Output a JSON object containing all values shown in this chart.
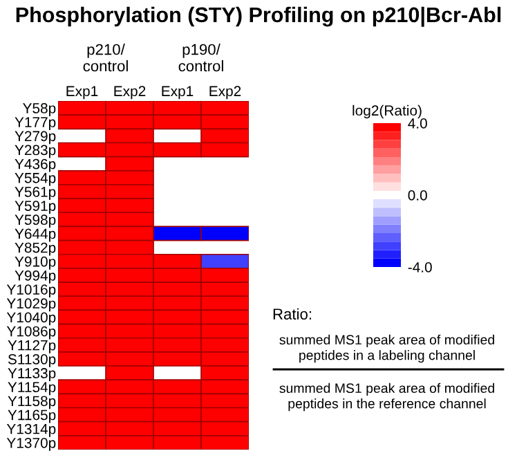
{
  "chart_data": {
    "type": "heatmap",
    "title": "Phosphorylation (STY) Profiling on p210|Bcr-Abl",
    "categories": [
      "Exp1",
      "Exp2",
      "Exp1",
      "Exp2"
    ],
    "y_categories": [
      "Y58p",
      "Y177p",
      "Y279p",
      "Y283p",
      "Y436p",
      "Y554p",
      "Y561p",
      "Y591p",
      "Y598p",
      "Y644p",
      "Y852p",
      "Y910p",
      "Y994p",
      "Y1016p",
      "Y1029p",
      "Y1040p",
      "Y1086p",
      "Y1127p",
      "S1130p",
      "Y1133p",
      "Y1154p",
      "Y1158p",
      "Y1165p",
      "Y1314p",
      "Y1370p"
    ],
    "cells": [
      [
        4,
        4,
        4,
        4
      ],
      [
        4,
        4,
        4,
        4
      ],
      [
        null,
        4,
        null,
        4
      ],
      [
        4,
        4,
        4,
        4
      ],
      [
        null,
        4,
        null,
        null
      ],
      [
        4,
        4,
        null,
        null
      ],
      [
        4,
        4,
        null,
        null
      ],
      [
        4,
        4,
        null,
        null
      ],
      [
        4,
        4,
        null,
        null
      ],
      [
        4,
        4,
        -4,
        -4
      ],
      [
        4,
        4,
        null,
        null
      ],
      [
        4,
        4,
        4,
        -3
      ],
      [
        4,
        4,
        4,
        4
      ],
      [
        4,
        4,
        4,
        4
      ],
      [
        4,
        4,
        4,
        4
      ],
      [
        4,
        4,
        4,
        4
      ],
      [
        4,
        4,
        4,
        4
      ],
      [
        4,
        4,
        4,
        4
      ],
      [
        4,
        4,
        4,
        4
      ],
      [
        null,
        4,
        null,
        4
      ],
      [
        4,
        4,
        4,
        4
      ],
      [
        4,
        4,
        4,
        4
      ],
      [
        4,
        4,
        4,
        4
      ],
      [
        4,
        4,
        4,
        4
      ],
      [
        4,
        4,
        4,
        4
      ]
    ],
    "clabel": "log2(Ratio)",
    "clim": [
      -4,
      4
    ],
    "cticks": [
      {
        "value": 4,
        "label": "4.0"
      },
      {
        "value": 0,
        "label": "0.0"
      },
      {
        "value": -4,
        "label": "-4.0"
      }
    ],
    "annotations": [
      "p210/\ncontrol",
      "p190/\ncontrol",
      "Ratio:",
      "summed MS1 peak area of modified\npeptides in a labeling channel",
      "summed MS1 peak area of modified\npeptides in the reference channel"
    ]
  }
}
